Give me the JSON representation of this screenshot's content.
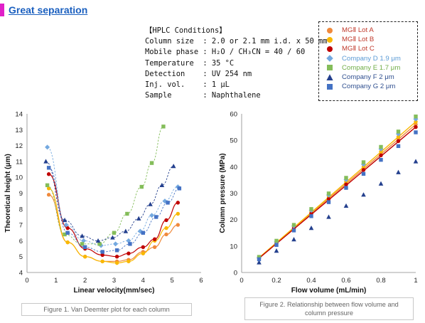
{
  "header": {
    "title": "Great separation"
  },
  "conditions": {
    "heading": "【HPLC Conditions】",
    "rows": [
      "Column size  : 2.0 or 2.1 mm i.d. x 50 mm",
      "Mobile phase : H₂O / CH₃CN = 40 / 60",
      "Temperature  : 35 °C",
      "Detection    : UV 254 nm",
      "Inj. vol.    : 1 μL",
      "Sample       : Naphthalene"
    ]
  },
  "legend": [
    {
      "name": "MGⅡ Lot A",
      "color": "#f08a3c",
      "marker": "circle",
      "text_color": "#c0392b"
    },
    {
      "name": "MGⅡ Lot B",
      "color": "#f9b800",
      "marker": "circle",
      "text_color": "#c0392b"
    },
    {
      "name": "MGⅡ Lot C",
      "color": "#c00000",
      "marker": "circle",
      "text_color": "#c0392b"
    },
    {
      "name": "Company D 1.9 μm",
      "color": "#74a9e0",
      "marker": "diamond",
      "text_color": "#5b9bd5"
    },
    {
      "name": "Company E 1.7 μm",
      "color": "#84bd5a",
      "marker": "square",
      "text_color": "#70ad47"
    },
    {
      "name": "Company F  2 μm",
      "color": "#24408e",
      "marker": "triangle",
      "text_color": "#2f4f8f"
    },
    {
      "name": "Company G 2 μm",
      "color": "#4472c4",
      "marker": "square",
      "text_color": "#2f4f8f"
    }
  ],
  "captions": {
    "fig1": "Figure 1. Van Deemter plot for each column",
    "fig2_line1": "Figure 2. Relationship between flow volume and",
    "fig2_line2": "column pressure"
  },
  "chart_data": [
    {
      "type": "scatter",
      "title": "",
      "xlabel": "Linear velocity(mm/sec)",
      "ylabel": "Theoretical height (μm)",
      "xlim": [
        0,
        6
      ],
      "ylim": [
        4,
        14
      ],
      "xticks": [
        0,
        1,
        2,
        3,
        4,
        5,
        6
      ],
      "yticks": [
        4,
        5,
        6,
        7,
        8,
        9,
        10,
        11,
        12,
        13,
        14
      ],
      "grid": false,
      "series": [
        {
          "name": "MGⅡ Lot A",
          "x": [
            0.75,
            1.4,
            2.0,
            2.6,
            3.1,
            3.5,
            4.0,
            4.4,
            4.8,
            5.2
          ],
          "y": [
            8.9,
            5.9,
            5.0,
            4.7,
            4.7,
            4.8,
            5.3,
            5.6,
            6.4,
            7.0
          ]
        },
        {
          "name": "MGⅡ Lot B",
          "x": [
            0.75,
            1.4,
            2.0,
            2.6,
            3.1,
            3.5,
            4.0,
            4.4,
            4.8,
            5.2
          ],
          "y": [
            9.3,
            5.9,
            5.0,
            4.7,
            4.6,
            4.7,
            5.2,
            6.0,
            6.8,
            7.7
          ]
        },
        {
          "name": "MGⅡ Lot C",
          "x": [
            0.75,
            1.4,
            2.0,
            2.6,
            3.1,
            3.5,
            4.0,
            4.4,
            4.8,
            5.2
          ],
          "y": [
            10.2,
            6.8,
            5.5,
            5.1,
            5.0,
            5.2,
            5.6,
            6.1,
            7.3,
            8.4
          ]
        },
        {
          "name": "Company D 1.9 μm",
          "x": [
            0.7,
            1.35,
            1.95,
            2.55,
            3.05,
            3.5,
            3.9,
            4.3,
            4.75,
            5.2
          ],
          "y": [
            11.9,
            7.0,
            6.0,
            5.7,
            5.8,
            6.0,
            6.6,
            7.6,
            8.5,
            9.4
          ]
        },
        {
          "name": "Company E 1.7 μm",
          "x": [
            0.7,
            1.3,
            1.9,
            2.5,
            3.0,
            3.45,
            3.95,
            4.3,
            4.7
          ],
          "y": [
            9.5,
            6.4,
            5.8,
            5.8,
            6.5,
            7.7,
            9.4,
            10.9,
            13.2
          ]
        },
        {
          "name": "Company F  2 μm",
          "x": [
            0.65,
            1.3,
            1.9,
            2.45,
            2.95,
            3.4,
            3.85,
            4.25,
            4.65,
            5.05
          ],
          "y": [
            11.0,
            7.3,
            6.3,
            6.0,
            6.2,
            6.6,
            7.4,
            8.3,
            9.5,
            10.7
          ]
        },
        {
          "name": "Company G 2 μm",
          "x": [
            0.75,
            1.4,
            2.0,
            2.6,
            3.1,
            3.55,
            4.0,
            4.45,
            4.85,
            5.25
          ],
          "y": [
            10.6,
            6.5,
            5.6,
            5.3,
            5.4,
            5.8,
            6.5,
            7.5,
            8.4,
            9.3
          ]
        }
      ]
    },
    {
      "type": "scatter",
      "title": "",
      "xlabel": "Flow volume (mL/min)",
      "ylabel": "Column pressure (MPa)",
      "xlim": [
        0,
        1
      ],
      "ylim": [
        0,
        60
      ],
      "xticks": [
        0,
        0.2,
        0.4,
        0.6,
        0.8,
        1
      ],
      "yticks": [
        0,
        10,
        20,
        30,
        40,
        50,
        60
      ],
      "grid": false,
      "series": [
        {
          "name": "MGⅡ Lot A",
          "x": [
            0.1,
            0.2,
            0.3,
            0.4,
            0.5,
            0.6,
            0.7,
            0.8,
            0.9,
            1.0
          ],
          "y": [
            5.5,
            11.2,
            17.0,
            22.7,
            28.3,
            33.9,
            39.5,
            45.0,
            50.6,
            56.0
          ]
        },
        {
          "name": "MGⅡ Lot B",
          "x": [
            0.1,
            0.2,
            0.3,
            0.4,
            0.5,
            0.6,
            0.7,
            0.8,
            0.9,
            1.0
          ],
          "y": [
            5.6,
            11.5,
            17.3,
            23.0,
            28.7,
            34.4,
            40.0,
            45.7,
            51.3,
            57.0
          ]
        },
        {
          "name": "MGⅡ Lot C",
          "x": [
            0.1,
            0.2,
            0.3,
            0.4,
            0.5,
            0.6,
            0.7,
            0.8,
            0.9,
            1.0
          ],
          "y": [
            5.4,
            11.0,
            16.7,
            22.3,
            27.8,
            33.3,
            38.8,
            44.3,
            49.7,
            55.0
          ]
        },
        {
          "name": "Company D 1.9 μm",
          "x": [
            0.1,
            0.2,
            0.3,
            0.4,
            0.5,
            0.6,
            0.7,
            0.8,
            0.9,
            1.0
          ],
          "y": [
            5.7,
            11.7,
            17.6,
            23.5,
            29.3,
            35.1,
            40.9,
            46.7,
            52.4,
            58.0
          ]
        },
        {
          "name": "Company E 1.7 μm",
          "x": [
            0.1,
            0.2,
            0.3,
            0.4,
            0.5,
            0.6,
            0.7,
            0.8,
            0.9,
            1.0
          ],
          "y": [
            5.9,
            12.0,
            18.0,
            24.0,
            29.9,
            35.8,
            41.7,
            47.5,
            53.3,
            59.0
          ]
        },
        {
          "name": "Company F  2 μm",
          "x": [
            0.1,
            0.2,
            0.3,
            0.4,
            0.5,
            0.6,
            0.7,
            0.8,
            0.9,
            1.0
          ],
          "y": [
            3.8,
            8.2,
            12.5,
            16.8,
            21.0,
            25.2,
            29.4,
            33.6,
            37.9,
            42.0
          ]
        },
        {
          "name": "Company G 2 μm",
          "x": [
            0.1,
            0.2,
            0.3,
            0.4,
            0.5,
            0.6,
            0.7,
            0.8,
            0.9,
            1.0
          ],
          "y": [
            5.0,
            10.4,
            15.9,
            21.3,
            26.6,
            32.0,
            37.3,
            42.6,
            47.8,
            53.0
          ]
        }
      ]
    }
  ]
}
